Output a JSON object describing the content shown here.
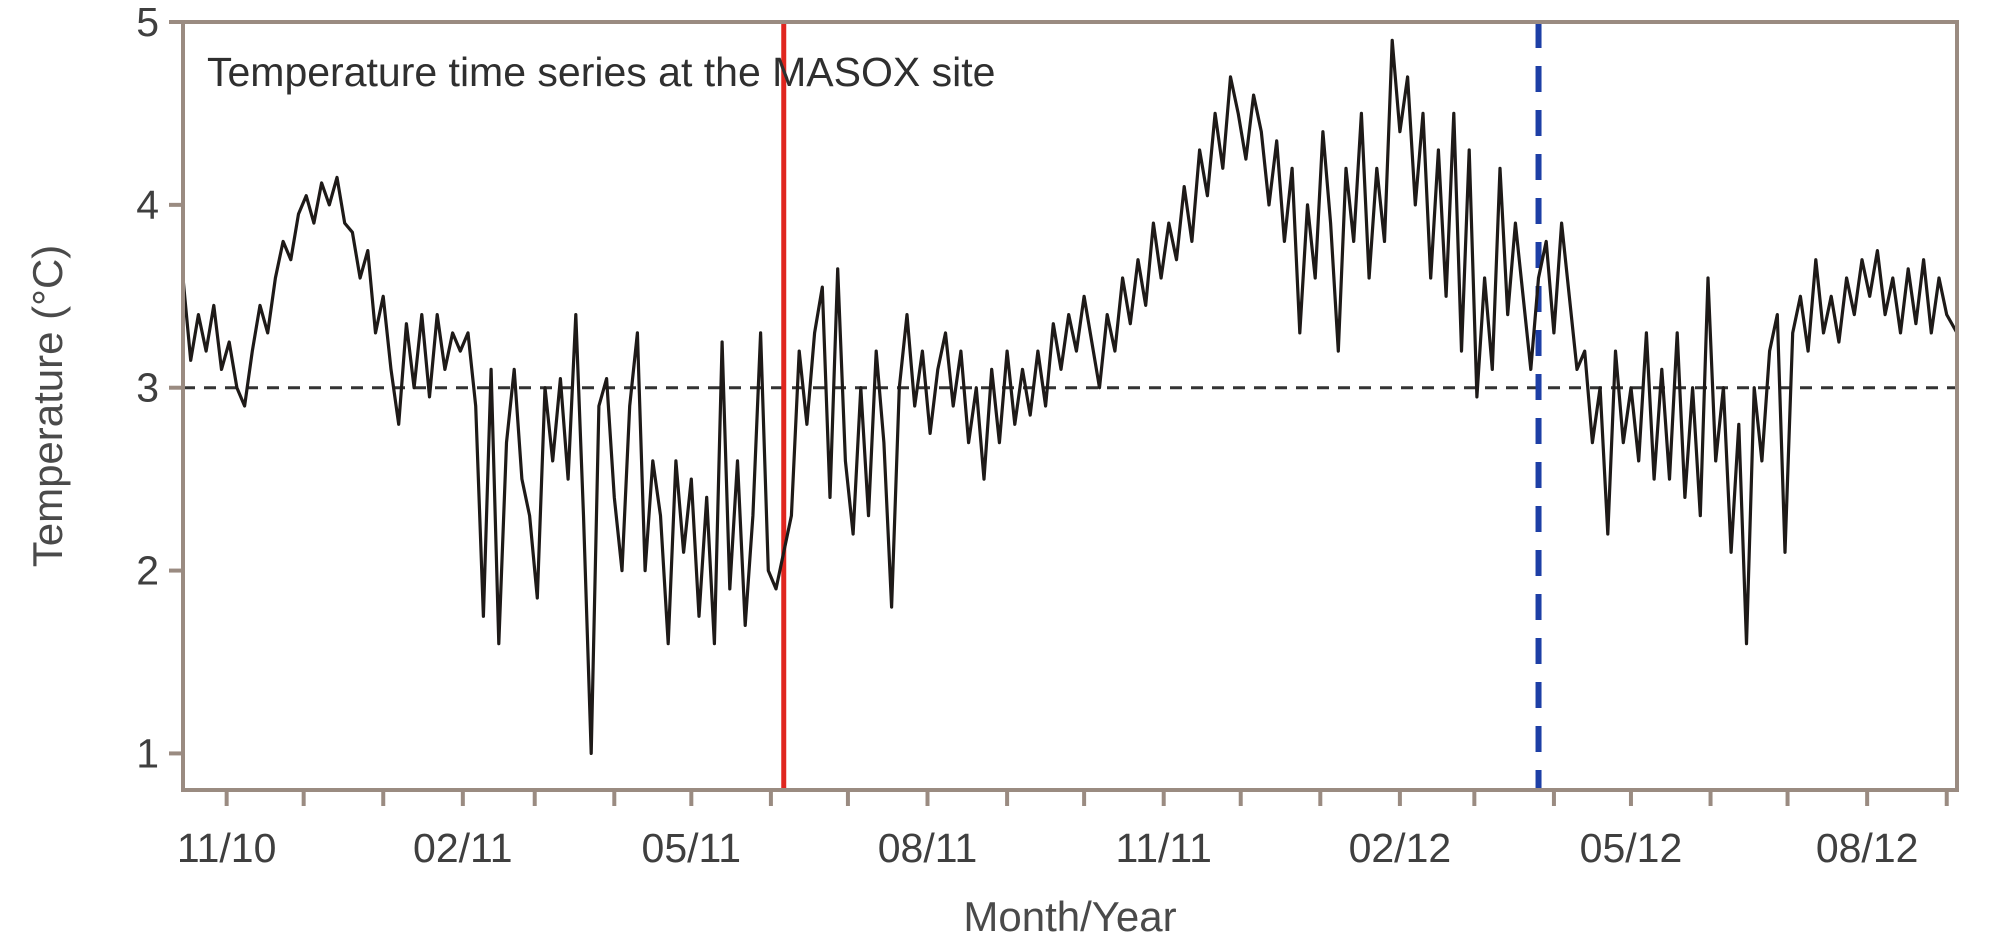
{
  "chart_data": {
    "type": "line",
    "title": "Temperature time series at the MASOX site",
    "xlabel": "Month/Year",
    "ylabel": "Temperature (°C)",
    "xlim": [
      "2010-10-15",
      "2012-09-05"
    ],
    "ylim": [
      0.8,
      5
    ],
    "yticks": [
      1,
      2,
      3,
      4,
      5
    ],
    "xticks": [
      {
        "date": "2010-11-01",
        "label": "11/10"
      },
      {
        "date": "2011-02-01",
        "label": "02/11"
      },
      {
        "date": "2011-05-01",
        "label": "05/11"
      },
      {
        "date": "2011-08-01",
        "label": "08/11"
      },
      {
        "date": "2011-11-01",
        "label": "11/11"
      },
      {
        "date": "2012-02-01",
        "label": "02/12"
      },
      {
        "date": "2012-05-01",
        "label": "05/12"
      },
      {
        "date": "2012-08-01",
        "label": "08/12"
      }
    ],
    "minor_ticks": [
      "2010-12-01",
      "2011-01-01",
      "2011-03-01",
      "2011-04-01",
      "2011-06-01",
      "2011-07-01",
      "2011-09-01",
      "2011-10-01",
      "2011-12-01",
      "2012-01-01",
      "2012-03-01",
      "2012-04-01",
      "2012-06-01",
      "2012-07-01",
      "2012-09-01"
    ],
    "reference_lines": [
      {
        "axis": "y",
        "value": 3,
        "style": "dashed",
        "color": "#333333"
      },
      {
        "axis": "x",
        "value": "2011-06-06",
        "style": "solid",
        "color": "#e0261f"
      },
      {
        "axis": "x",
        "value": "2012-03-26",
        "style": "dashed",
        "color": "#1d3fa6"
      }
    ],
    "grid": false,
    "series": [
      {
        "color": "#1e1a18",
        "points": [
          [
            "2010-10-15",
            3.6
          ],
          [
            "2010-10-18",
            3.15
          ],
          [
            "2010-10-21",
            3.4
          ],
          [
            "2010-10-24",
            3.2
          ],
          [
            "2010-10-27",
            3.45
          ],
          [
            "2010-10-30",
            3.1
          ],
          [
            "2010-11-02",
            3.25
          ],
          [
            "2010-11-05",
            3.0
          ],
          [
            "2010-11-08",
            2.9
          ],
          [
            "2010-11-11",
            3.2
          ],
          [
            "2010-11-14",
            3.45
          ],
          [
            "2010-11-17",
            3.3
          ],
          [
            "2010-11-20",
            3.6
          ],
          [
            "2010-11-23",
            3.8
          ],
          [
            "2010-11-26",
            3.7
          ],
          [
            "2010-11-29",
            3.95
          ],
          [
            "2010-12-02",
            4.05
          ],
          [
            "2010-12-05",
            3.9
          ],
          [
            "2010-12-08",
            4.12
          ],
          [
            "2010-12-11",
            4.0
          ],
          [
            "2010-12-14",
            4.15
          ],
          [
            "2010-12-17",
            3.9
          ],
          [
            "2010-12-20",
            3.85
          ],
          [
            "2010-12-23",
            3.6
          ],
          [
            "2010-12-26",
            3.75
          ],
          [
            "2010-12-29",
            3.3
          ],
          [
            "2011-01-01",
            3.5
          ],
          [
            "2011-01-04",
            3.1
          ],
          [
            "2011-01-07",
            2.8
          ],
          [
            "2011-01-10",
            3.35
          ],
          [
            "2011-01-13",
            3.0
          ],
          [
            "2011-01-16",
            3.4
          ],
          [
            "2011-01-19",
            2.95
          ],
          [
            "2011-01-22",
            3.4
          ],
          [
            "2011-01-25",
            3.1
          ],
          [
            "2011-01-28",
            3.3
          ],
          [
            "2011-01-31",
            3.2
          ],
          [
            "2011-02-03",
            3.3
          ],
          [
            "2011-02-06",
            2.9
          ],
          [
            "2011-02-09",
            1.75
          ],
          [
            "2011-02-12",
            3.1
          ],
          [
            "2011-02-15",
            1.6
          ],
          [
            "2011-02-18",
            2.7
          ],
          [
            "2011-02-21",
            3.1
          ],
          [
            "2011-02-24",
            2.5
          ],
          [
            "2011-02-27",
            2.3
          ],
          [
            "2011-03-02",
            1.85
          ],
          [
            "2011-03-05",
            3.0
          ],
          [
            "2011-03-08",
            2.6
          ],
          [
            "2011-03-11",
            3.05
          ],
          [
            "2011-03-14",
            2.5
          ],
          [
            "2011-03-17",
            3.4
          ],
          [
            "2011-03-20",
            2.3
          ],
          [
            "2011-03-23",
            1.0
          ],
          [
            "2011-03-26",
            2.9
          ],
          [
            "2011-03-29",
            3.05
          ],
          [
            "2011-04-01",
            2.4
          ],
          [
            "2011-04-04",
            2.0
          ],
          [
            "2011-04-07",
            2.9
          ],
          [
            "2011-04-10",
            3.3
          ],
          [
            "2011-04-13",
            2.0
          ],
          [
            "2011-04-16",
            2.6
          ],
          [
            "2011-04-19",
            2.3
          ],
          [
            "2011-04-22",
            1.6
          ],
          [
            "2011-04-25",
            2.6
          ],
          [
            "2011-04-28",
            2.1
          ],
          [
            "2011-05-01",
            2.5
          ],
          [
            "2011-05-04",
            1.75
          ],
          [
            "2011-05-07",
            2.4
          ],
          [
            "2011-05-10",
            1.6
          ],
          [
            "2011-05-13",
            3.25
          ],
          [
            "2011-05-16",
            1.9
          ],
          [
            "2011-05-19",
            2.6
          ],
          [
            "2011-05-22",
            1.7
          ],
          [
            "2011-05-25",
            2.3
          ],
          [
            "2011-05-28",
            3.3
          ],
          [
            "2011-05-31",
            2.0
          ],
          [
            "2011-06-03",
            1.9
          ],
          [
            "2011-06-06",
            2.1
          ],
          [
            "2011-06-09",
            2.3
          ],
          [
            "2011-06-12",
            3.2
          ],
          [
            "2011-06-15",
            2.8
          ],
          [
            "2011-06-18",
            3.3
          ],
          [
            "2011-06-21",
            3.55
          ],
          [
            "2011-06-24",
            2.4
          ],
          [
            "2011-06-27",
            3.65
          ],
          [
            "2011-06-30",
            2.6
          ],
          [
            "2011-07-03",
            2.2
          ],
          [
            "2011-07-06",
            3.0
          ],
          [
            "2011-07-09",
            2.3
          ],
          [
            "2011-07-12",
            3.2
          ],
          [
            "2011-07-15",
            2.7
          ],
          [
            "2011-07-18",
            1.8
          ],
          [
            "2011-07-21",
            3.0
          ],
          [
            "2011-07-24",
            3.4
          ],
          [
            "2011-07-27",
            2.9
          ],
          [
            "2011-07-30",
            3.2
          ],
          [
            "2011-08-02",
            2.75
          ],
          [
            "2011-08-05",
            3.1
          ],
          [
            "2011-08-08",
            3.3
          ],
          [
            "2011-08-11",
            2.9
          ],
          [
            "2011-08-14",
            3.2
          ],
          [
            "2011-08-17",
            2.7
          ],
          [
            "2011-08-20",
            3.0
          ],
          [
            "2011-08-23",
            2.5
          ],
          [
            "2011-08-26",
            3.1
          ],
          [
            "2011-08-29",
            2.7
          ],
          [
            "2011-09-01",
            3.2
          ],
          [
            "2011-09-04",
            2.8
          ],
          [
            "2011-09-07",
            3.1
          ],
          [
            "2011-09-10",
            2.85
          ],
          [
            "2011-09-13",
            3.2
          ],
          [
            "2011-09-16",
            2.9
          ],
          [
            "2011-09-19",
            3.35
          ],
          [
            "2011-09-22",
            3.1
          ],
          [
            "2011-09-25",
            3.4
          ],
          [
            "2011-09-28",
            3.2
          ],
          [
            "2011-10-01",
            3.5
          ],
          [
            "2011-10-04",
            3.25
          ],
          [
            "2011-10-07",
            3.0
          ],
          [
            "2011-10-10",
            3.4
          ],
          [
            "2011-10-13",
            3.2
          ],
          [
            "2011-10-16",
            3.6
          ],
          [
            "2011-10-19",
            3.35
          ],
          [
            "2011-10-22",
            3.7
          ],
          [
            "2011-10-25",
            3.45
          ],
          [
            "2011-10-28",
            3.9
          ],
          [
            "2011-10-31",
            3.6
          ],
          [
            "2011-11-03",
            3.9
          ],
          [
            "2011-11-06",
            3.7
          ],
          [
            "2011-11-09",
            4.1
          ],
          [
            "2011-11-12",
            3.8
          ],
          [
            "2011-11-15",
            4.3
          ],
          [
            "2011-11-18",
            4.05
          ],
          [
            "2011-11-21",
            4.5
          ],
          [
            "2011-11-24",
            4.2
          ],
          [
            "2011-11-27",
            4.7
          ],
          [
            "2011-11-30",
            4.5
          ],
          [
            "2011-12-03",
            4.25
          ],
          [
            "2011-12-06",
            4.6
          ],
          [
            "2011-12-09",
            4.4
          ],
          [
            "2011-12-12",
            4.0
          ],
          [
            "2011-12-15",
            4.35
          ],
          [
            "2011-12-18",
            3.8
          ],
          [
            "2011-12-21",
            4.2
          ],
          [
            "2011-12-24",
            3.3
          ],
          [
            "2011-12-27",
            4.0
          ],
          [
            "2011-12-30",
            3.6
          ],
          [
            "2012-01-02",
            4.4
          ],
          [
            "2012-01-05",
            3.9
          ],
          [
            "2012-01-08",
            3.2
          ],
          [
            "2012-01-11",
            4.2
          ],
          [
            "2012-01-14",
            3.8
          ],
          [
            "2012-01-17",
            4.5
          ],
          [
            "2012-01-20",
            3.6
          ],
          [
            "2012-01-23",
            4.2
          ],
          [
            "2012-01-26",
            3.8
          ],
          [
            "2012-01-29",
            4.9
          ],
          [
            "2012-02-01",
            4.4
          ],
          [
            "2012-02-04",
            4.7
          ],
          [
            "2012-02-07",
            4.0
          ],
          [
            "2012-02-10",
            4.5
          ],
          [
            "2012-02-13",
            3.6
          ],
          [
            "2012-02-16",
            4.3
          ],
          [
            "2012-02-19",
            3.5
          ],
          [
            "2012-02-22",
            4.5
          ],
          [
            "2012-02-25",
            3.2
          ],
          [
            "2012-02-28",
            4.3
          ],
          [
            "2012-03-02",
            2.95
          ],
          [
            "2012-03-05",
            3.6
          ],
          [
            "2012-03-08",
            3.1
          ],
          [
            "2012-03-11",
            4.2
          ],
          [
            "2012-03-14",
            3.4
          ],
          [
            "2012-03-17",
            3.9
          ],
          [
            "2012-03-20",
            3.5
          ],
          [
            "2012-03-23",
            3.1
          ],
          [
            "2012-03-26",
            3.6
          ],
          [
            "2012-03-29",
            3.8
          ],
          [
            "2012-04-01",
            3.3
          ],
          [
            "2012-04-04",
            3.9
          ],
          [
            "2012-04-07",
            3.5
          ],
          [
            "2012-04-10",
            3.1
          ],
          [
            "2012-04-13",
            3.2
          ],
          [
            "2012-04-16",
            2.7
          ],
          [
            "2012-04-19",
            3.0
          ],
          [
            "2012-04-22",
            2.2
          ],
          [
            "2012-04-25",
            3.2
          ],
          [
            "2012-04-28",
            2.7
          ],
          [
            "2012-05-01",
            3.0
          ],
          [
            "2012-05-04",
            2.6
          ],
          [
            "2012-05-07",
            3.3
          ],
          [
            "2012-05-10",
            2.5
          ],
          [
            "2012-05-13",
            3.1
          ],
          [
            "2012-05-16",
            2.5
          ],
          [
            "2012-05-19",
            3.3
          ],
          [
            "2012-05-22",
            2.4
          ],
          [
            "2012-05-25",
            3.0
          ],
          [
            "2012-05-28",
            2.3
          ],
          [
            "2012-05-31",
            3.6
          ],
          [
            "2012-06-03",
            2.6
          ],
          [
            "2012-06-06",
            3.0
          ],
          [
            "2012-06-09",
            2.1
          ],
          [
            "2012-06-12",
            2.8
          ],
          [
            "2012-06-15",
            1.6
          ],
          [
            "2012-06-18",
            3.0
          ],
          [
            "2012-06-21",
            2.6
          ],
          [
            "2012-06-24",
            3.2
          ],
          [
            "2012-06-27",
            3.4
          ],
          [
            "2012-06-30",
            2.1
          ],
          [
            "2012-07-03",
            3.3
          ],
          [
            "2012-07-06",
            3.5
          ],
          [
            "2012-07-09",
            3.2
          ],
          [
            "2012-07-12",
            3.7
          ],
          [
            "2012-07-15",
            3.3
          ],
          [
            "2012-07-18",
            3.5
          ],
          [
            "2012-07-21",
            3.25
          ],
          [
            "2012-07-24",
            3.6
          ],
          [
            "2012-07-27",
            3.4
          ],
          [
            "2012-07-30",
            3.7
          ],
          [
            "2012-08-02",
            3.5
          ],
          [
            "2012-08-05",
            3.75
          ],
          [
            "2012-08-08",
            3.4
          ],
          [
            "2012-08-11",
            3.6
          ],
          [
            "2012-08-14",
            3.3
          ],
          [
            "2012-08-17",
            3.65
          ],
          [
            "2012-08-20",
            3.35
          ],
          [
            "2012-08-23",
            3.7
          ],
          [
            "2012-08-26",
            3.3
          ],
          [
            "2012-08-29",
            3.6
          ],
          [
            "2012-09-01",
            3.4
          ],
          [
            "2012-09-05",
            3.3
          ]
        ]
      }
    ]
  }
}
